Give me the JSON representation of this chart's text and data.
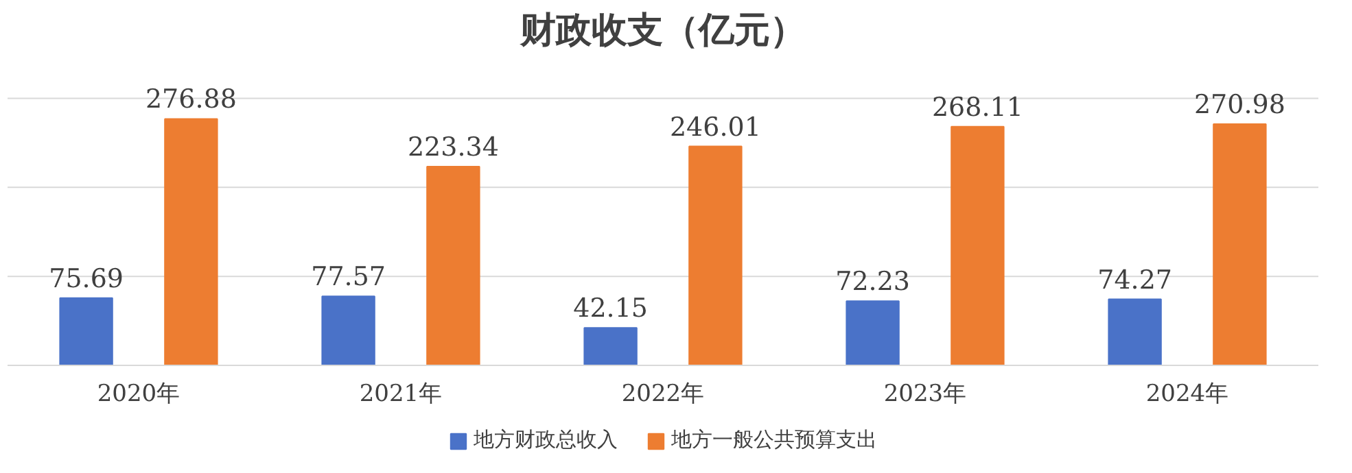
{
  "chart_data": {
    "type": "bar",
    "title": "财政收支（亿元）",
    "categories": [
      "2020年",
      "2021年",
      "2022年",
      "2023年",
      "2024年"
    ],
    "series": [
      {
        "name": "地方财政总收入",
        "color": "#4a72c8",
        "values": [
          75.69,
          77.57,
          42.15,
          72.23,
          74.27
        ]
      },
      {
        "name": "地方一般公共预算支出",
        "color": "#ed7d31",
        "values": [
          276.88,
          223.34,
          246.01,
          268.11,
          270.98
        ]
      }
    ],
    "ref_lines": [
      {
        "axis": "y",
        "value": 100,
        "color": "#d9d9d9"
      },
      {
        "axis": "y",
        "value": 200,
        "color": "#d9d9d9"
      },
      {
        "axis": "y",
        "value": 300,
        "color": "#d9d9d9"
      }
    ],
    "tick_labels": "x",
    "legend": "bottom",
    "data_labels": true
  }
}
